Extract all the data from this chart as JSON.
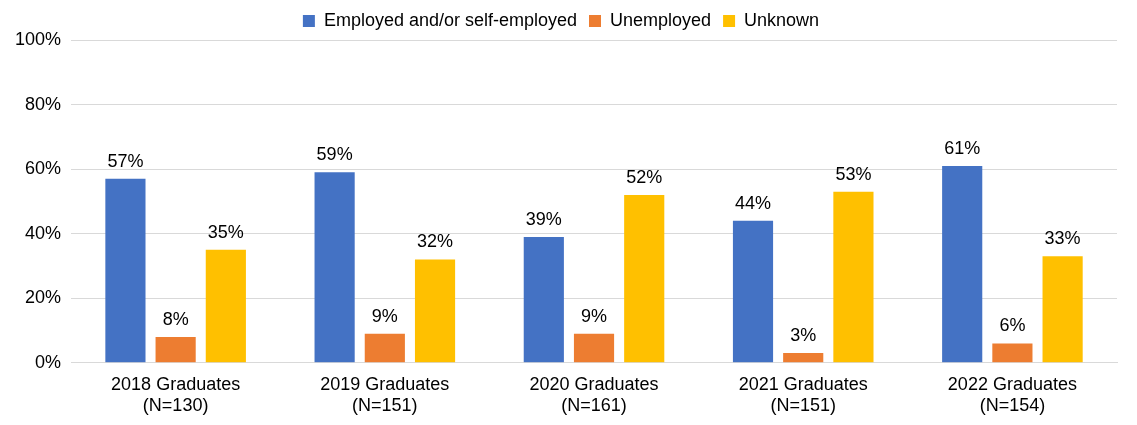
{
  "chart_data": {
    "type": "bar",
    "categories": [
      "2018 Graduates\n(N=130)",
      "2019 Graduates\n(N=151)",
      "2020 Graduates\n(N=161)",
      "2021 Graduates\n(N=151)",
      "2022 Graduates\n(N=154)"
    ],
    "series": [
      {
        "name": "Employed and/or self-employed",
        "color": "#4472c4",
        "values": [
          57,
          59,
          39,
          44,
          61
        ],
        "value_labels": [
          "57%",
          "59%",
          "39%",
          "44%",
          "61%"
        ]
      },
      {
        "name": "Unemployed",
        "color": "#ed7d31",
        "values": [
          8,
          9,
          9,
          3,
          6
        ],
        "value_labels": [
          "8%",
          "9%",
          "9%",
          "3%",
          "6%"
        ]
      },
      {
        "name": "Unknown",
        "color": "#ffc000",
        "values": [
          35,
          32,
          52,
          53,
          33
        ],
        "value_labels": [
          "35%",
          "32%",
          "52%",
          "53%",
          "33%"
        ]
      }
    ],
    "ylim": [
      0,
      100
    ],
    "yticks": [
      {
        "value": 0,
        "label": "0%"
      },
      {
        "value": 20,
        "label": "20%"
      },
      {
        "value": 40,
        "label": "40%"
      },
      {
        "value": 60,
        "label": "60%"
      },
      {
        "value": 80,
        "label": "80%"
      },
      {
        "value": 100,
        "label": "100%"
      }
    ],
    "grid": "y",
    "legend": "top"
  }
}
